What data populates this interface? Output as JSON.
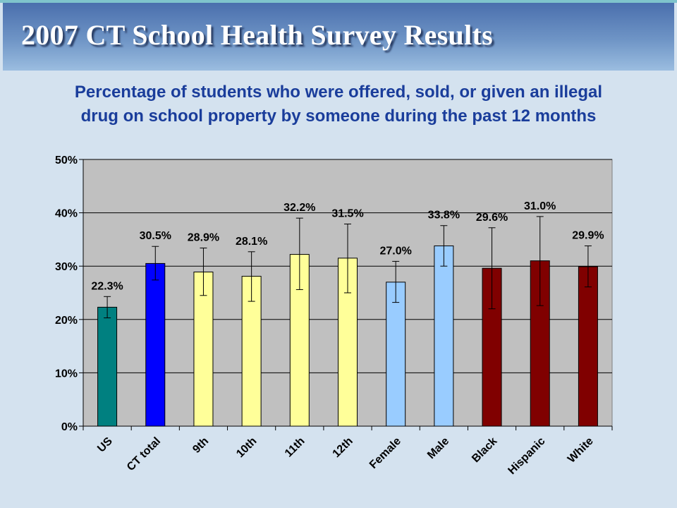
{
  "slide": {
    "title": "2007 CT School Health Survey Results",
    "subtitle_line1": "Percentage of students who were offered, sold, or given an illegal",
    "subtitle_line2": "drug on school property by someone during the past 12 months"
  },
  "chart_data": {
    "type": "bar",
    "title": "",
    "xlabel": "",
    "ylabel": "",
    "ylim": [
      0,
      50
    ],
    "yticks": [
      0,
      10,
      20,
      30,
      40,
      50
    ],
    "ytick_labels": [
      "0%",
      "10%",
      "20%",
      "30%",
      "40%",
      "50%"
    ],
    "grid": true,
    "legend": "none",
    "categories": [
      "US",
      "CT total",
      "9th",
      "10th",
      "11th",
      "12th",
      "Female",
      "Male",
      "Black",
      "Hispanic",
      "White"
    ],
    "values": [
      22.3,
      30.5,
      28.9,
      28.1,
      32.2,
      31.5,
      27.0,
      33.8,
      29.6,
      31.0,
      29.9
    ],
    "value_labels": [
      "22.3%",
      "30.5%",
      "28.9%",
      "28.1%",
      "32.2%",
      "31.5%",
      "27.0%",
      "33.8%",
      "29.6%",
      "31.0%",
      "29.9%"
    ],
    "error_low": [
      20.3,
      27.4,
      24.5,
      23.4,
      25.6,
      25.0,
      23.2,
      30.0,
      22.0,
      22.6,
      26.1
    ],
    "error_high": [
      24.3,
      33.7,
      33.4,
      32.7,
      39.0,
      37.9,
      30.9,
      37.6,
      37.2,
      39.3,
      33.8
    ],
    "colors": [
      "#008080",
      "#0000ff",
      "#ffff99",
      "#ffff99",
      "#ffff99",
      "#ffff99",
      "#99ccff",
      "#99ccff",
      "#800000",
      "#800000",
      "#800000"
    ],
    "plot_background": "#c0c0c0"
  }
}
